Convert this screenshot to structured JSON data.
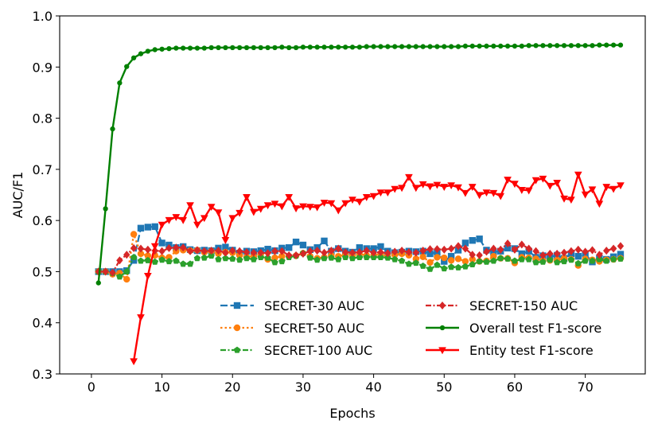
{
  "chart_data": {
    "type": "line",
    "xlabel": "Epochs",
    "ylabel": "AUC/F1",
    "xlim": [
      -4.5,
      78.5
    ],
    "ylim": [
      0.3,
      1.0
    ],
    "xticks": [
      0,
      10,
      20,
      30,
      40,
      50,
      60,
      70
    ],
    "yticks": [
      0.3,
      0.4,
      0.5,
      0.6,
      0.7,
      0.8,
      0.9,
      1.0
    ],
    "ytick_labels": [
      "0.3",
      "0.4",
      "0.5",
      "0.6",
      "0.7",
      "0.8",
      "0.9",
      "1.0"
    ],
    "grid": false,
    "legend": {
      "location": "lower-right",
      "columns": 2
    },
    "series": [
      {
        "name": "SECRET-30 AUC",
        "color": "#1f77b4",
        "linestyle": "dashed",
        "marker": "square",
        "x": [
          1,
          2,
          3,
          4,
          5,
          6,
          7,
          8,
          9,
          10,
          11,
          12,
          13,
          14,
          15,
          16,
          17,
          18,
          19,
          20,
          21,
          22,
          23,
          24,
          25,
          26,
          27,
          28,
          29,
          30,
          31,
          32,
          33,
          34,
          35,
          36,
          37,
          38,
          39,
          40,
          41,
          42,
          43,
          44,
          45,
          46,
          47,
          48,
          49,
          50,
          51,
          52,
          53,
          54,
          55,
          56,
          57,
          58,
          59,
          60,
          61,
          62,
          63,
          64,
          65,
          66,
          67,
          68,
          69,
          70,
          71,
          72,
          73,
          74,
          75
        ],
        "y": [
          0.5,
          0.5,
          0.5,
          0.5,
          0.502,
          0.522,
          0.585,
          0.587,
          0.588,
          0.556,
          0.552,
          0.547,
          0.549,
          0.543,
          0.541,
          0.542,
          0.541,
          0.546,
          0.548,
          0.542,
          0.536,
          0.54,
          0.539,
          0.541,
          0.544,
          0.541,
          0.546,
          0.547,
          0.558,
          0.552,
          0.543,
          0.547,
          0.56,
          0.54,
          0.545,
          0.54,
          0.538,
          0.547,
          0.545,
          0.545,
          0.549,
          0.54,
          0.537,
          0.538,
          0.54,
          0.539,
          0.54,
          0.535,
          0.538,
          0.52,
          0.53,
          0.542,
          0.556,
          0.561,
          0.564,
          0.542,
          0.538,
          0.54,
          0.546,
          0.545,
          0.535,
          0.54,
          0.528,
          0.531,
          0.529,
          0.532,
          0.526,
          0.535,
          0.53,
          0.534,
          0.519,
          0.526,
          0.524,
          0.529,
          0.534
        ]
      },
      {
        "name": "SECRET-50 AUC",
        "color": "#ff7f0e",
        "linestyle": "dotted",
        "marker": "circle",
        "x": [
          1,
          2,
          3,
          4,
          5,
          6,
          7,
          8,
          9,
          10,
          11,
          12,
          13,
          14,
          15,
          16,
          17,
          18,
          19,
          20,
          21,
          22,
          23,
          24,
          25,
          26,
          27,
          28,
          29,
          30,
          31,
          32,
          33,
          34,
          35,
          36,
          37,
          38,
          39,
          40,
          41,
          42,
          43,
          44,
          45,
          46,
          47,
          48,
          49,
          50,
          51,
          52,
          53,
          54,
          55,
          56,
          57,
          58,
          59,
          60,
          61,
          62,
          63,
          64,
          65,
          66,
          67,
          68,
          69,
          70,
          71,
          72,
          73,
          74,
          75
        ],
        "y": [
          0.5,
          0.5,
          0.495,
          0.497,
          0.485,
          0.573,
          0.535,
          0.531,
          0.532,
          0.527,
          0.528,
          0.54,
          0.542,
          0.541,
          0.542,
          0.538,
          0.54,
          0.535,
          0.538,
          0.537,
          0.532,
          0.529,
          0.53,
          0.534,
          0.524,
          0.527,
          0.53,
          0.53,
          0.531,
          0.536,
          0.53,
          0.526,
          0.528,
          0.532,
          0.53,
          0.533,
          0.531,
          0.534,
          0.532,
          0.532,
          0.534,
          0.53,
          0.533,
          0.535,
          0.532,
          0.525,
          0.529,
          0.518,
          0.528,
          0.527,
          0.522,
          0.525,
          0.52,
          0.524,
          0.52,
          0.521,
          0.53,
          0.526,
          0.526,
          0.517,
          0.528,
          0.527,
          0.525,
          0.522,
          0.522,
          0.523,
          0.526,
          0.524,
          0.512,
          0.525,
          0.523,
          0.52,
          0.523,
          0.524,
          0.526
        ]
      },
      {
        "name": "SECRET-100 AUC",
        "color": "#2ca02c",
        "linestyle": "dashdot",
        "marker": "pentagon",
        "x": [
          1,
          2,
          3,
          4,
          5,
          6,
          7,
          8,
          9,
          10,
          11,
          12,
          13,
          14,
          15,
          16,
          17,
          18,
          19,
          20,
          21,
          22,
          23,
          24,
          25,
          26,
          27,
          28,
          29,
          30,
          31,
          32,
          33,
          34,
          35,
          36,
          37,
          38,
          39,
          40,
          41,
          42,
          43,
          44,
          45,
          46,
          47,
          48,
          49,
          50,
          51,
          52,
          53,
          54,
          55,
          56,
          57,
          58,
          59,
          60,
          61,
          62,
          63,
          64,
          65,
          66,
          67,
          68,
          69,
          70,
          71,
          72,
          73,
          74,
          75
        ],
        "y": [
          0.5,
          0.5,
          0.497,
          0.49,
          0.5,
          0.528,
          0.521,
          0.522,
          0.519,
          0.523,
          0.52,
          0.521,
          0.515,
          0.515,
          0.526,
          0.527,
          0.531,
          0.524,
          0.526,
          0.525,
          0.523,
          0.526,
          0.524,
          0.528,
          0.527,
          0.518,
          0.52,
          0.528,
          0.531,
          0.536,
          0.527,
          0.523,
          0.526,
          0.527,
          0.524,
          0.528,
          0.526,
          0.528,
          0.528,
          0.528,
          0.528,
          0.527,
          0.524,
          0.521,
          0.515,
          0.517,
          0.511,
          0.505,
          0.513,
          0.506,
          0.509,
          0.508,
          0.51,
          0.514,
          0.52,
          0.519,
          0.521,
          0.526,
          0.525,
          0.521,
          0.524,
          0.524,
          0.518,
          0.519,
          0.523,
          0.518,
          0.52,
          0.523,
          0.516,
          0.521,
          0.521,
          0.524,
          0.521,
          0.524,
          0.525
        ]
      },
      {
        "name": "SECRET-150 AUC",
        "color": "#d62728",
        "linestyle": "dashdot",
        "marker": "diamond",
        "x": [
          1,
          2,
          3,
          4,
          5,
          6,
          7,
          8,
          9,
          10,
          11,
          12,
          13,
          14,
          15,
          16,
          17,
          18,
          19,
          20,
          21,
          22,
          23,
          24,
          25,
          26,
          27,
          28,
          29,
          30,
          31,
          32,
          33,
          34,
          35,
          36,
          37,
          38,
          39,
          40,
          41,
          42,
          43,
          44,
          45,
          46,
          47,
          48,
          49,
          50,
          51,
          52,
          53,
          54,
          55,
          56,
          57,
          58,
          59,
          60,
          61,
          62,
          63,
          64,
          65,
          66,
          67,
          68,
          69,
          70,
          71,
          72,
          73,
          74,
          75
        ],
        "y": [
          0.5,
          0.5,
          0.498,
          0.522,
          0.533,
          0.546,
          0.545,
          0.543,
          0.541,
          0.54,
          0.546,
          0.547,
          0.547,
          0.54,
          0.542,
          0.54,
          0.541,
          0.541,
          0.537,
          0.541,
          0.54,
          0.538,
          0.537,
          0.537,
          0.536,
          0.54,
          0.54,
          0.532,
          0.532,
          0.535,
          0.54,
          0.541,
          0.537,
          0.541,
          0.545,
          0.538,
          0.537,
          0.538,
          0.541,
          0.537,
          0.538,
          0.536,
          0.539,
          0.541,
          0.538,
          0.537,
          0.541,
          0.544,
          0.544,
          0.543,
          0.545,
          0.55,
          0.545,
          0.533,
          0.532,
          0.539,
          0.545,
          0.543,
          0.555,
          0.543,
          0.553,
          0.545,
          0.54,
          0.532,
          0.535,
          0.535,
          0.537,
          0.54,
          0.543,
          0.539,
          0.542,
          0.533,
          0.541,
          0.545,
          0.55
        ]
      },
      {
        "name": "Overall test F1-score",
        "color": "#008000",
        "linestyle": "solid",
        "marker": "circle-small",
        "x": [
          1,
          2,
          3,
          4,
          5,
          6,
          7,
          8,
          9,
          10,
          11,
          12,
          13,
          14,
          15,
          16,
          17,
          18,
          19,
          20,
          21,
          22,
          23,
          24,
          25,
          26,
          27,
          28,
          29,
          30,
          31,
          32,
          33,
          34,
          35,
          36,
          37,
          38,
          39,
          40,
          41,
          42,
          43,
          44,
          45,
          46,
          47,
          48,
          49,
          50,
          51,
          52,
          53,
          54,
          55,
          56,
          57,
          58,
          59,
          60,
          61,
          62,
          63,
          64,
          65,
          66,
          67,
          68,
          69,
          70,
          71,
          72,
          73,
          74,
          75
        ],
        "y": [
          0.478,
          0.623,
          0.779,
          0.869,
          0.901,
          0.918,
          0.926,
          0.931,
          0.934,
          0.935,
          0.936,
          0.937,
          0.937,
          0.937,
          0.937,
          0.937,
          0.938,
          0.938,
          0.938,
          0.938,
          0.938,
          0.938,
          0.938,
          0.938,
          0.938,
          0.938,
          0.939,
          0.938,
          0.938,
          0.939,
          0.939,
          0.939,
          0.939,
          0.939,
          0.939,
          0.939,
          0.939,
          0.939,
          0.94,
          0.94,
          0.94,
          0.94,
          0.94,
          0.94,
          0.94,
          0.94,
          0.94,
          0.94,
          0.94,
          0.94,
          0.94,
          0.94,
          0.941,
          0.941,
          0.941,
          0.941,
          0.941,
          0.941,
          0.941,
          0.941,
          0.941,
          0.942,
          0.942,
          0.942,
          0.942,
          0.942,
          0.942,
          0.942,
          0.942,
          0.942,
          0.942,
          0.943,
          0.943,
          0.943,
          0.943
        ]
      },
      {
        "name": "Entity test F1-score",
        "color": "#ff0000",
        "linestyle": "solid",
        "marker": "triangle-down",
        "x": [
          6,
          7,
          8,
          9,
          10,
          11,
          12,
          13,
          14,
          15,
          16,
          17,
          18,
          19,
          20,
          21,
          22,
          23,
          24,
          25,
          26,
          27,
          28,
          29,
          30,
          31,
          32,
          33,
          34,
          35,
          36,
          37,
          38,
          39,
          40,
          41,
          42,
          43,
          44,
          45,
          46,
          47,
          48,
          49,
          50,
          51,
          52,
          53,
          54,
          55,
          56,
          57,
          58,
          59,
          60,
          61,
          62,
          63,
          64,
          65,
          66,
          67,
          68,
          69,
          70,
          71,
          72,
          73,
          74,
          75
        ],
        "y": [
          0.325,
          0.411,
          0.492,
          0.55,
          0.592,
          0.601,
          0.607,
          0.601,
          0.63,
          0.592,
          0.605,
          0.627,
          0.616,
          0.562,
          0.605,
          0.615,
          0.646,
          0.617,
          0.623,
          0.63,
          0.633,
          0.628,
          0.646,
          0.624,
          0.628,
          0.627,
          0.626,
          0.635,
          0.634,
          0.62,
          0.634,
          0.641,
          0.637,
          0.646,
          0.648,
          0.655,
          0.655,
          0.662,
          0.664,
          0.685,
          0.664,
          0.671,
          0.667,
          0.67,
          0.666,
          0.669,
          0.665,
          0.654,
          0.666,
          0.65,
          0.655,
          0.654,
          0.648,
          0.68,
          0.672,
          0.66,
          0.659,
          0.679,
          0.682,
          0.668,
          0.674,
          0.643,
          0.641,
          0.69,
          0.651,
          0.661,
          0.633,
          0.666,
          0.662,
          0.669
        ]
      }
    ]
  }
}
